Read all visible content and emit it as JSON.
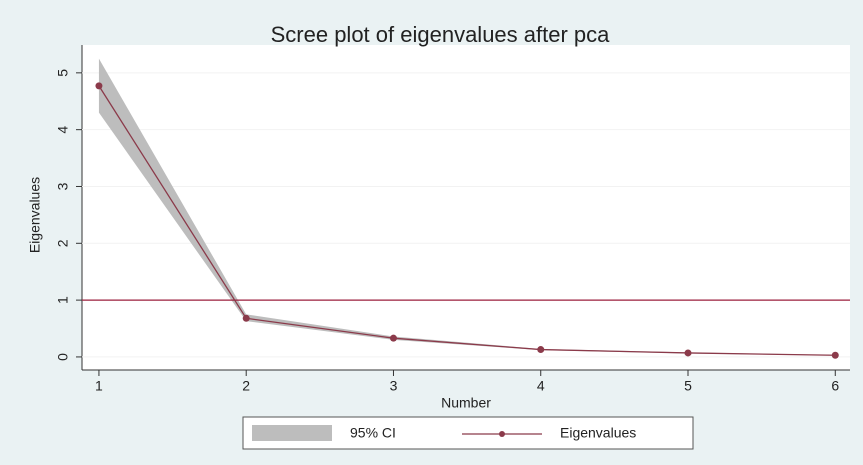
{
  "chart_data": {
    "type": "line",
    "title": "Scree plot of eigenvalues after pca",
    "xlabel": "Number",
    "ylabel": "Eigenvalues",
    "x": [
      1,
      2,
      3,
      4,
      5,
      6
    ],
    "series": [
      {
        "name": "95% CI",
        "color": "#bdbdbd",
        "lower": [
          4.3,
          0.63,
          0.3,
          0.12,
          0.06,
          0.025
        ],
        "upper": [
          5.25,
          0.75,
          0.36,
          0.14,
          0.08,
          0.035
        ]
      },
      {
        "name": "Eigenvalues",
        "color": "#8b3a4a",
        "values": [
          4.77,
          0.68,
          0.33,
          0.13,
          0.07,
          0.03
        ]
      }
    ],
    "reference_line": 1,
    "reference_color": "#9b1f3c",
    "xlim": [
      0.885,
      6.1
    ],
    "ylim": [
      -0.23,
      5.49
    ],
    "xticks": [
      1,
      2,
      3,
      4,
      5,
      6
    ],
    "yticks": [
      0,
      1,
      2,
      3,
      4,
      5
    ],
    "grid": true,
    "legend": "bottom"
  }
}
